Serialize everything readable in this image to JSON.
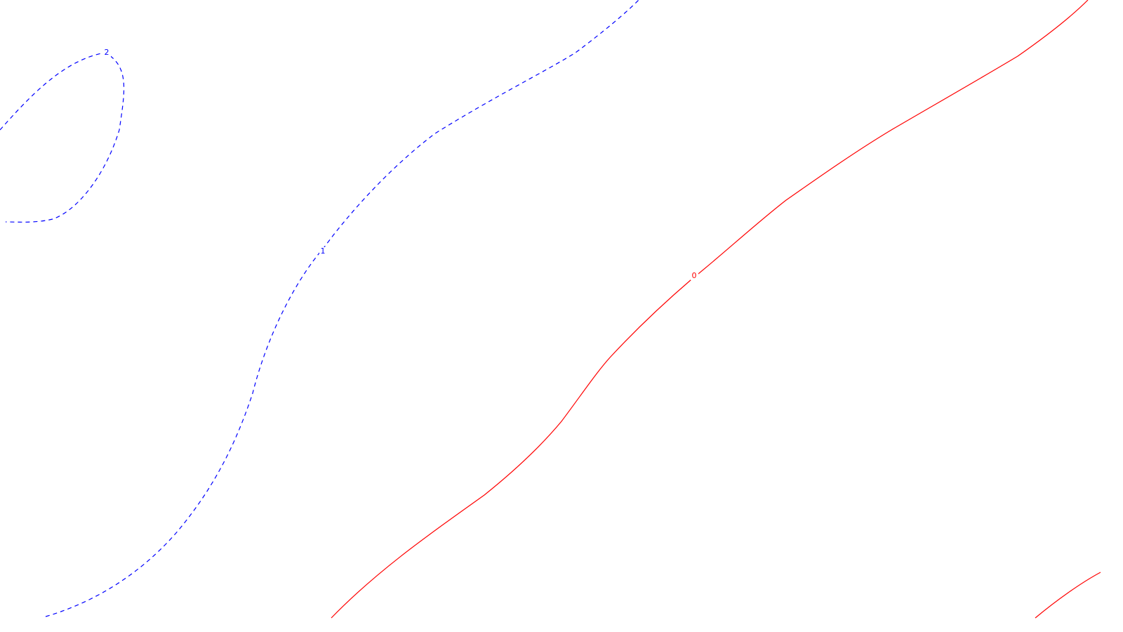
{
  "chart_data": {
    "type": "contour",
    "title": "",
    "xlabel": "",
    "ylabel": "",
    "grid": false,
    "legend": "none",
    "contours": [
      {
        "level": "2",
        "color": "#0000ff",
        "style": "dashed",
        "label": "2"
      },
      {
        "level": "1",
        "color": "#0000ff",
        "style": "dashed",
        "label": "1"
      },
      {
        "level": "0",
        "color": "#ff0000",
        "style": "solid",
        "label": "0"
      },
      {
        "level": "0",
        "color": "#ff0000",
        "style": "solid",
        "label": ""
      }
    ]
  }
}
